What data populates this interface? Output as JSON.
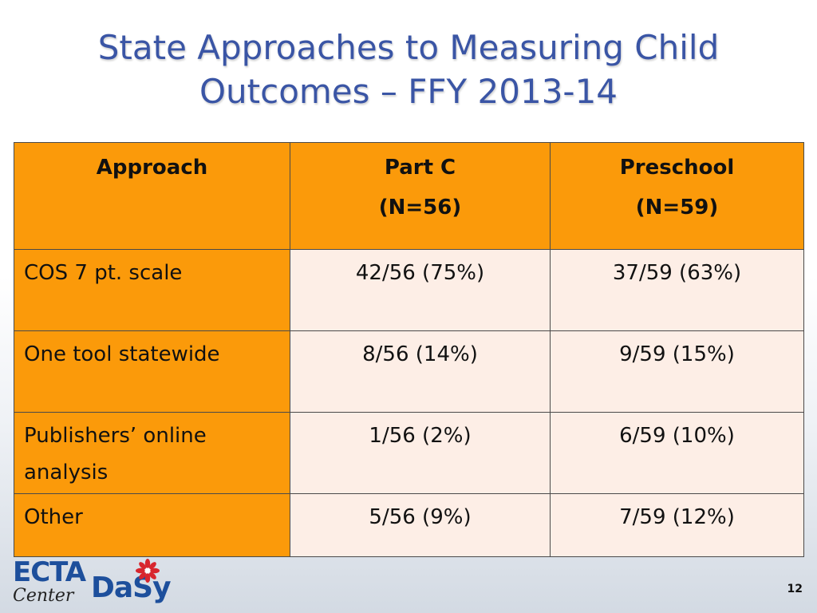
{
  "slide": {
    "title_line1": "State Approaches to Measuring Child",
    "title_line2": "Outcomes – FFY 2013-14",
    "page_number": "12"
  },
  "table": {
    "headers": [
      {
        "line1": "Approach",
        "line2": ""
      },
      {
        "line1": "Part C",
        "line2": "(N=56)"
      },
      {
        "line1": "Preschool",
        "line2": "(N=59)"
      }
    ],
    "rows": [
      {
        "label": "COS 7 pt. scale",
        "part_c": "42/56 (75%)",
        "preschool": "37/59 (63%)"
      },
      {
        "label": "One tool statewide",
        "part_c": "8/56 (14%)",
        "preschool": "9/59 (15%)"
      },
      {
        "label": "Publishers’ online analysis",
        "part_c": "1/56 (2%)",
        "preschool": "6/59 (10%)"
      },
      {
        "label": "Other",
        "part_c": "5/56 (9%)",
        "preschool": "7/59 (12%)"
      }
    ]
  },
  "logo": {
    "ecta_text": "ECTA",
    "center_text": "Center",
    "dasy_text": "DaSy"
  },
  "colors": {
    "title": "#3a55a5",
    "header_fill": "#fb9a0a",
    "cell_fill": "#fdeee6",
    "logo_blue": "#1d4f9c",
    "flower_red": "#d8262e"
  }
}
